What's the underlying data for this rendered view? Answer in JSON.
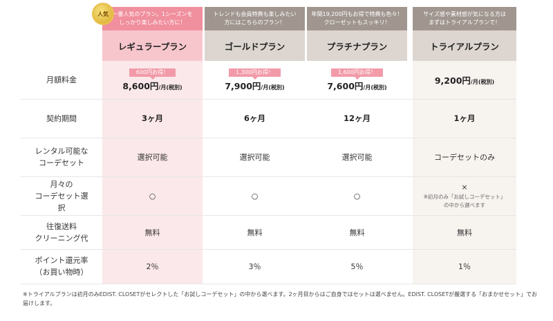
{
  "colors": {
    "pink_header": "#f08f9d",
    "pink_cell": "#fbe8ea",
    "grey_header": "#a0968f",
    "grey_name": "#ddd6d0",
    "beige_cell": "#f7f3ef",
    "discount": "#f29aa8"
  },
  "badge": {
    "label": "人気",
    "icon": "gold-medal-icon"
  },
  "plans": [
    {
      "blurb": "一番人気のプラン。1シーズンを\nしっかり楽しみたい方に！",
      "name": "レギュラープラン"
    },
    {
      "blurb": "トレンドも会員特典も楽しみたい\n方にはこちらのプラン！",
      "name": "ゴールドプラン"
    },
    {
      "blurb": "年間19,200円もお得で特典も色々！\nクローゼットもスッキリ！",
      "name": "プラチナプラン"
    },
    {
      "blurb": "サイズ感や素材感が気になる方は\nまずはトライアルプランで！",
      "name": "トライアルプラン"
    }
  ],
  "rows": {
    "price": {
      "label": "月額料金",
      "cells": [
        {
          "discount": "600円お得！",
          "amount": "8,600円",
          "unit": "/月(税別)"
        },
        {
          "discount": "1,300円お得！",
          "amount": "7,900円",
          "unit": "/月(税別)"
        },
        {
          "discount": "1,600円お得！",
          "amount": "7,600円",
          "unit": "/月(税別)"
        },
        {
          "discount": "",
          "amount": "9,200円",
          "unit": "/月(税別)"
        }
      ]
    },
    "period": {
      "label": "契約期間",
      "cells": [
        "3ヶ月",
        "6ヶ月",
        "12ヶ月",
        "1ヶ月"
      ]
    },
    "rental": {
      "label": "レンタル可能な\nコーデセット",
      "cells": [
        "選択可能",
        "選択可能",
        "選択可能",
        "コーデセットのみ"
      ]
    },
    "select": {
      "label": "月々の\nコーデセット選\n択",
      "cells": [
        "○",
        "○",
        "○",
        "×"
      ],
      "trial_note": "※初月のみ「お試しコーデセット」\nの中から選べます"
    },
    "shipping": {
      "label": "往復送料\nクリーニング代",
      "cells": [
        "無料",
        "無料",
        "無料",
        "無料"
      ]
    },
    "points": {
      "label": "ポイント還元率\n（お買い物時）",
      "cells": [
        "2％",
        "3％",
        "5％",
        "1％"
      ]
    }
  },
  "footnote": "※トライアルプランは初月のみEDIST. CLOSETがセレクトした「お試しコーデセット」の中から選べます。2ヶ月目からはご自身ではセットは選べません。EDIST. CLOSETが厳選する「おまかせセット」でお届けします。"
}
